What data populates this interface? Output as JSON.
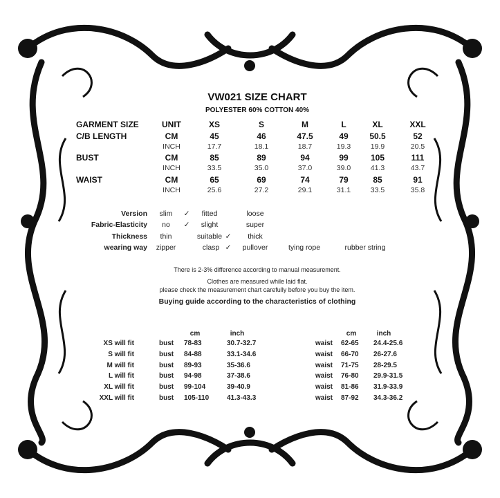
{
  "title": "VW021 SIZE CHART",
  "material": "POLYESTER 60% COTTON 40%",
  "size_table": {
    "headers": [
      "GARMENT SIZE",
      "UNIT",
      "XS",
      "S",
      "M",
      "L",
      "XL",
      "XXL"
    ],
    "rows": [
      {
        "label": "C/B LENGTH",
        "unit": "CM",
        "values": [
          "45",
          "46",
          "47.5",
          "49",
          "50.5",
          "52"
        ]
      },
      {
        "label": "",
        "unit": "INCH",
        "values": [
          "17.7",
          "18.1",
          "18.7",
          "19.3",
          "19.9",
          "20.5"
        ]
      },
      {
        "label": "BUST",
        "unit": "CM",
        "values": [
          "85",
          "89",
          "94",
          "99",
          "105",
          "111"
        ]
      },
      {
        "label": "",
        "unit": "INCH",
        "values": [
          "33.5",
          "35.0",
          "37.0",
          "39.0",
          "41.3",
          "43.7"
        ]
      },
      {
        "label": "WAIST",
        "unit": "CM",
        "values": [
          "65",
          "69",
          "74",
          "79",
          "85",
          "91"
        ]
      },
      {
        "label": "",
        "unit": "INCH",
        "values": [
          "25.6",
          "27.2",
          "29.1",
          "31.1",
          "33.5",
          "35.8"
        ]
      }
    ]
  },
  "attributes": [
    {
      "label": "Version",
      "options": [
        "slim",
        "fitted",
        "loose"
      ],
      "checked": "fitted"
    },
    {
      "label": "Fabric-Elasticity",
      "options": [
        "no",
        "slight",
        "super"
      ],
      "checked": "slight"
    },
    {
      "label": "Thickness",
      "options": [
        "thin",
        "suitable",
        "thick"
      ],
      "checked": "suitable"
    },
    {
      "label": "wearing way",
      "options": [
        "zipper",
        "clasp",
        "pullover",
        "tying rope",
        "rubber string"
      ],
      "checked": "clasp"
    }
  ],
  "check_mark": "✓",
  "notes": [
    "There is 2-3% difference according to manual measurement.",
    "Clothes are measured while laid flat.",
    "please check the measurement chart carefully before you buy the item."
  ],
  "guide": {
    "title": "Buying guide according to the characteristics of clothing",
    "unit_cm": "cm",
    "unit_inch": "inch",
    "rows": [
      {
        "label": "XS will  fit",
        "bust": "bust",
        "bust_cm": "78-83",
        "bust_inch": "30.7-32.7",
        "waist": "waist",
        "waist_cm": "62-65",
        "waist_inch": "24.4-25.6"
      },
      {
        "label": "S will  fit",
        "bust": "bust",
        "bust_cm": "84-88",
        "bust_inch": "33.1-34.6",
        "waist": "waist",
        "waist_cm": "66-70",
        "waist_inch": "26-27.6"
      },
      {
        "label": "M will fit",
        "bust": "bust",
        "bust_cm": "89-93",
        "bust_inch": "35-36.6",
        "waist": "waist",
        "waist_cm": "71-75",
        "waist_inch": "28-29.5"
      },
      {
        "label": "L will fit",
        "bust": "bust",
        "bust_cm": "94-98",
        "bust_inch": "37-38.6",
        "waist": "waist",
        "waist_cm": "76-80",
        "waist_inch": "29.9-31.5"
      },
      {
        "label": "XL will fit",
        "bust": "bust",
        "bust_cm": "99-104",
        "bust_inch": "39-40.9",
        "waist": "waist",
        "waist_cm": "81-86",
        "waist_inch": "31.9-33.9"
      },
      {
        "label": "XXL will fit",
        "bust": "bust",
        "bust_cm": "105-110",
        "bust_inch": "41.3-43.3",
        "waist": "waist",
        "waist_cm": "87-92",
        "waist_inch": "34.3-36.2"
      }
    ]
  }
}
